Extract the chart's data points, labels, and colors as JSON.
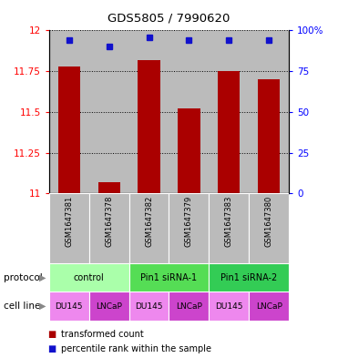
{
  "title": "GDS5805 / 7990620",
  "samples": [
    "GSM1647381",
    "GSM1647378",
    "GSM1647382",
    "GSM1647379",
    "GSM1647383",
    "GSM1647380"
  ],
  "red_values": [
    11.78,
    11.07,
    11.82,
    11.52,
    11.75,
    11.7
  ],
  "blue_values": [
    11.94,
    11.9,
    11.96,
    11.94,
    11.94,
    11.94
  ],
  "ylim": [
    11.0,
    12.0
  ],
  "yticks": [
    11.0,
    11.25,
    11.5,
    11.75,
    12.0
  ],
  "ytick_labels": [
    "11",
    "11.25",
    "11.5",
    "11.75",
    "12"
  ],
  "right_yticks": [
    0,
    25,
    50,
    75,
    100
  ],
  "right_ytick_labels": [
    "0",
    "25",
    "50",
    "75",
    "100%"
  ],
  "protocols": [
    {
      "label": "control",
      "span": [
        0,
        2
      ],
      "color": "#aaffaa"
    },
    {
      "label": "Pin1 siRNA-1",
      "span": [
        2,
        4
      ],
      "color": "#55dd55"
    },
    {
      "label": "Pin1 siRNA-2",
      "span": [
        4,
        6
      ],
      "color": "#33cc55"
    }
  ],
  "cell_lines": [
    "DU145",
    "LNCaP",
    "DU145",
    "LNCaP",
    "DU145",
    "LNCaP"
  ],
  "cell_line_colors": [
    "#ee88ee",
    "#cc44cc",
    "#ee88ee",
    "#cc44cc",
    "#ee88ee",
    "#cc44cc"
  ],
  "bar_color": "#aa0000",
  "dot_color": "#1111cc",
  "bg_color": "#bbbbbb",
  "legend_red": "transformed count",
  "legend_blue": "percentile rank within the sample",
  "protocol_label": "protocol",
  "cell_line_label": "cell line"
}
